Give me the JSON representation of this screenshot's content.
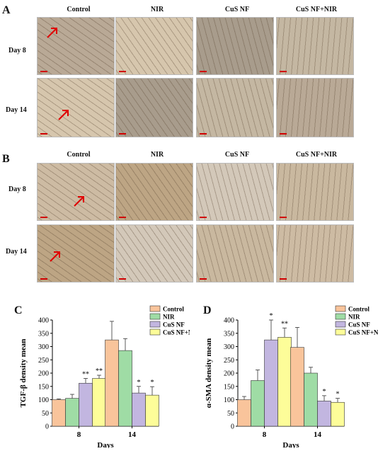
{
  "panels": {
    "A": "A",
    "B": "B",
    "C": "C",
    "D": "D"
  },
  "columns": [
    "Control",
    "NIR",
    "CuS NF",
    "CuS NF+NIR"
  ],
  "rows": [
    "Day 8",
    "Day 14"
  ],
  "colors": {
    "control": "#f9c49b",
    "nir": "#9fdca5",
    "cus_nf": "#c2b6e0",
    "cus_nf_nir": "#fdfd99",
    "tissue_a": "#b9a996",
    "tissue_b": "#d6c6ad",
    "scale": "#d00000"
  },
  "chart_data": [
    {
      "type": "bar",
      "ylabel": "TGF-β density mean",
      "xlabel": "Days",
      "categories": [
        "8",
        "14"
      ],
      "ylim": [
        0,
        400
      ],
      "yticks": [
        0,
        50,
        100,
        150,
        200,
        250,
        300,
        350,
        400
      ],
      "legend_position": "top-right",
      "series": [
        {
          "name": "Control",
          "values": [
            100,
            325
          ],
          "errors": [
            3,
            70
          ]
        },
        {
          "name": "NIR",
          "values": [
            105,
            285
          ],
          "errors": [
            15,
            45
          ]
        },
        {
          "name": "CuS NF",
          "values": [
            162,
            125
          ],
          "errors": [
            18,
            25
          ]
        },
        {
          "name": "CuS NF+NIR",
          "values": [
            180,
            117
          ],
          "errors": [
            12,
            32
          ]
        }
      ],
      "annotations": [
        [
          "",
          "",
          "**",
          "**"
        ],
        [
          "",
          "",
          "*",
          "*"
        ]
      ]
    },
    {
      "type": "bar",
      "ylabel": "α-SMA density mean",
      "xlabel": "Days",
      "categories": [
        "8",
        "14"
      ],
      "ylim": [
        0,
        400
      ],
      "yticks": [
        0,
        50,
        100,
        150,
        200,
        250,
        300,
        350,
        400
      ],
      "legend_position": "top-right",
      "series": [
        {
          "name": "Control",
          "values": [
            100,
            297
          ],
          "errors": [
            12,
            75
          ]
        },
        {
          "name": "NIR",
          "values": [
            172,
            200
          ],
          "errors": [
            40,
            22
          ]
        },
        {
          "name": "CuS NF",
          "values": [
            325,
            95
          ],
          "errors": [
            75,
            20
          ]
        },
        {
          "name": "CuS NF+NIR",
          "values": [
            335,
            90
          ],
          "errors": [
            35,
            15
          ]
        }
      ],
      "annotations": [
        [
          "",
          "",
          "*",
          "**"
        ],
        [
          "",
          "",
          "*",
          "*"
        ]
      ]
    }
  ]
}
